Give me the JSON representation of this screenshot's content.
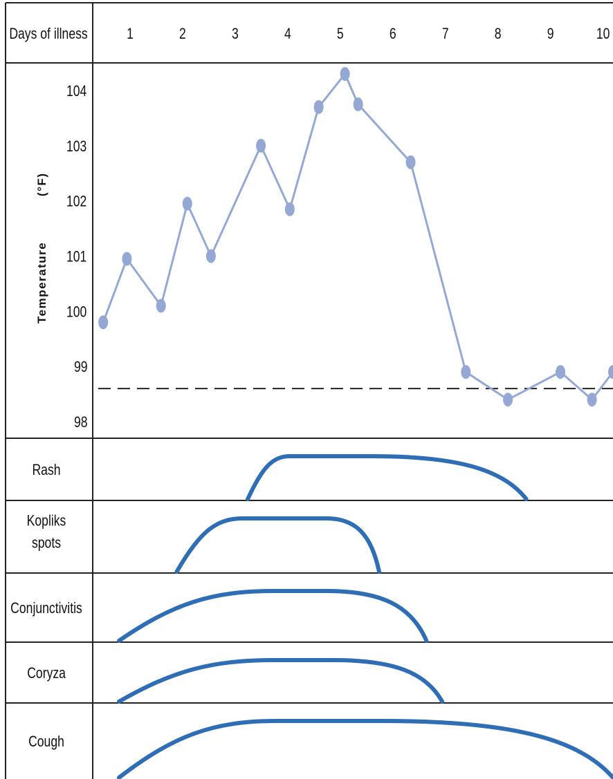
{
  "chart_data": {
    "type": "line",
    "header_label": "Days of illness",
    "days": [
      "1",
      "2",
      "3",
      "4",
      "5",
      "6",
      "7",
      "8",
      "9",
      "10"
    ],
    "ylabel": "Temperature",
    "yunit": "(°F)",
    "yticks": [
      "98",
      "99",
      "100",
      "101",
      "102",
      "103",
      "104"
    ],
    "ylim": [
      97.7,
      104.5
    ],
    "xlim": [
      0.5,
      10.4
    ],
    "baseline": 98.6,
    "temperature_series": {
      "x": [
        0.7,
        1.15,
        1.8,
        2.3,
        2.75,
        3.7,
        4.25,
        4.8,
        5.3,
        5.55,
        6.55,
        7.6,
        8.4,
        9.4,
        10.0,
        10.4
      ],
      "y": [
        99.8,
        100.95,
        100.1,
        101.95,
        101.0,
        103.0,
        101.85,
        103.7,
        104.3,
        103.75,
        102.7,
        98.9,
        98.4,
        98.9,
        98.4,
        98.9
      ],
      "color": "#95a8d3"
    },
    "conditions": [
      {
        "name": "Rash",
        "start": 3.45,
        "peak_start": 4.25,
        "peak_end": 5.8,
        "end": 8.75
      },
      {
        "name": "Kopliks spots",
        "start": 2.1,
        "peak_start": 3.35,
        "peak_end": 4.95,
        "end": 5.95
      },
      {
        "name": "Conjunctivitis",
        "start": 1.0,
        "peak_start": 3.95,
        "peak_end": 4.95,
        "end": 6.85
      },
      {
        "name": "Coryza",
        "start": 1.0,
        "peak_start": 3.95,
        "peak_end": 5.1,
        "end": 7.15
      },
      {
        "name": "Cough",
        "start": 1.0,
        "peak_start": 4.0,
        "peak_end": 6.0,
        "end": 10.4
      }
    ],
    "condition_line_color": "#2f6db5",
    "grid": false
  }
}
